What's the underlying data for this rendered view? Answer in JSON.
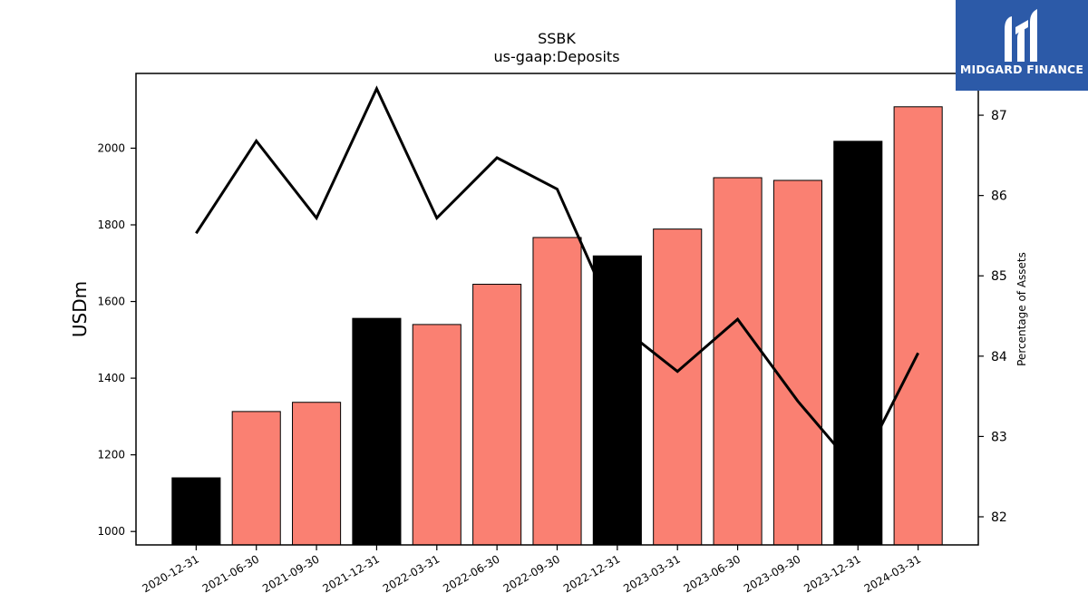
{
  "chart_data": {
    "type": "bar",
    "title": "SSBK",
    "subtitle": "us-gaap:Deposits",
    "ylabel": "USDm",
    "y2label": "Percentage of Assets",
    "categories": [
      "2020-12-31",
      "2021-06-30",
      "2021-09-30",
      "2021-12-31",
      "2022-03-31",
      "2022-06-30",
      "2022-09-30",
      "2022-12-31",
      "2023-03-31",
      "2023-06-30",
      "2023-09-30",
      "2023-12-31",
      "2024-03-31"
    ],
    "bars": {
      "values": [
        1140,
        1313,
        1337,
        1556,
        1540,
        1645,
        1767,
        1719,
        1789,
        1923,
        1916,
        2018,
        2108
      ],
      "colors": [
        "#000000",
        "#fa8072",
        "#fa8072",
        "#000000",
        "#fa8072",
        "#fa8072",
        "#fa8072",
        "#000000",
        "#fa8072",
        "#fa8072",
        "#fa8072",
        "#000000",
        "#fa8072"
      ]
    },
    "line": {
      "values": [
        85.53,
        86.68,
        85.72,
        87.33,
        85.72,
        86.47,
        86.08,
        84.4,
        83.81,
        84.46,
        83.44,
        82.56,
        84.04
      ],
      "color": "#000000"
    },
    "ylim": [
      965,
      2195
    ],
    "y2lim": [
      81.65,
      87.52
    ],
    "yticks": [
      1000,
      1200,
      1400,
      1600,
      1800,
      2000
    ],
    "y2ticks": [
      82,
      83,
      84,
      85,
      86,
      87
    ],
    "grid": false
  },
  "logo": {
    "text": "MIDGARD FINANCE",
    "bg": "#2c5aa8"
  }
}
